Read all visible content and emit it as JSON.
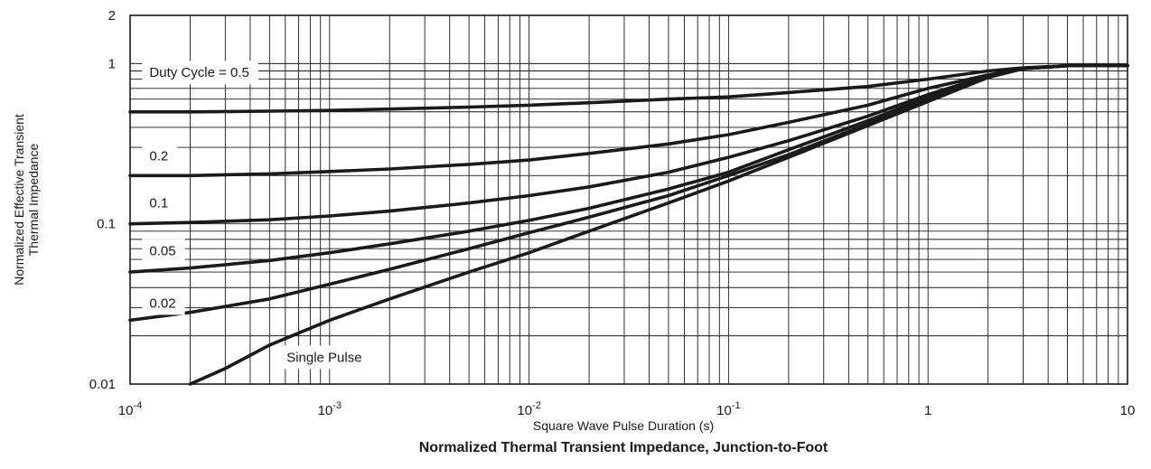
{
  "chart_data": {
    "type": "line",
    "title": "Normalized Thermal Transient Impedance, Junction-to-Foot",
    "xlabel": "Square Wave Pulse Duration (s)",
    "ylabel_lines": [
      "Normalized Effective Transient",
      "Thermal Impedance"
    ],
    "x_scale": "log",
    "y_scale": "log",
    "xlim": [
      0.0001,
      10
    ],
    "ylim": [
      0.01,
      2
    ],
    "grid": true,
    "x_ticks": [
      {
        "value": 0.0001,
        "base": "10",
        "exp": "-4"
      },
      {
        "value": 0.001,
        "base": "10",
        "exp": "-3"
      },
      {
        "value": 0.01,
        "base": "10",
        "exp": "-2"
      },
      {
        "value": 0.1,
        "base": "10",
        "exp": "-1"
      },
      {
        "value": 1,
        "base": "1",
        "exp": ""
      },
      {
        "value": 10,
        "base": "10",
        "exp": ""
      }
    ],
    "y_ticks": [
      {
        "value": 0.01,
        "label": "0.01"
      },
      {
        "value": 0.1,
        "label": "0.1"
      },
      {
        "value": 1,
        "label": "1"
      },
      {
        "value": 2,
        "label": "2"
      }
    ],
    "series": [
      {
        "name": "Duty Cycle = 0.5",
        "label_at": [
          0.000115,
          0.88
        ],
        "points": [
          [
            0.0001,
            0.5
          ],
          [
            0.0002,
            0.5
          ],
          [
            0.0005,
            0.505
          ],
          [
            0.001,
            0.51
          ],
          [
            0.002,
            0.52
          ],
          [
            0.005,
            0.535
          ],
          [
            0.01,
            0.55
          ],
          [
            0.02,
            0.57
          ],
          [
            0.05,
            0.6
          ],
          [
            0.1,
            0.62
          ],
          [
            0.2,
            0.66
          ],
          [
            0.5,
            0.72
          ],
          [
            1,
            0.8
          ],
          [
            2,
            0.9
          ],
          [
            3,
            0.94
          ],
          [
            5,
            0.97
          ],
          [
            10,
            0.97
          ]
        ]
      },
      {
        "name": "0.2",
        "label_at": [
          0.000115,
          0.265
        ],
        "points": [
          [
            0.0001,
            0.2
          ],
          [
            0.0002,
            0.2
          ],
          [
            0.0005,
            0.205
          ],
          [
            0.001,
            0.212
          ],
          [
            0.002,
            0.22
          ],
          [
            0.005,
            0.235
          ],
          [
            0.01,
            0.25
          ],
          [
            0.02,
            0.275
          ],
          [
            0.05,
            0.315
          ],
          [
            0.1,
            0.36
          ],
          [
            0.2,
            0.43
          ],
          [
            0.5,
            0.55
          ],
          [
            1,
            0.7
          ],
          [
            2,
            0.85
          ],
          [
            3,
            0.93
          ],
          [
            5,
            0.97
          ],
          [
            10,
            0.97
          ]
        ]
      },
      {
        "name": "0.1",
        "label_at": [
          0.000115,
          0.135
        ],
        "points": [
          [
            0.0001,
            0.1
          ],
          [
            0.0002,
            0.102
          ],
          [
            0.0005,
            0.106
          ],
          [
            0.001,
            0.112
          ],
          [
            0.002,
            0.12
          ],
          [
            0.005,
            0.135
          ],
          [
            0.01,
            0.15
          ],
          [
            0.02,
            0.17
          ],
          [
            0.05,
            0.21
          ],
          [
            0.1,
            0.26
          ],
          [
            0.2,
            0.33
          ],
          [
            0.5,
            0.47
          ],
          [
            1,
            0.64
          ],
          [
            2,
            0.84
          ],
          [
            3,
            0.93
          ],
          [
            5,
            0.97
          ],
          [
            10,
            0.97
          ]
        ]
      },
      {
        "name": "0.05",
        "label_at": [
          0.000115,
          0.068
        ],
        "points": [
          [
            0.0001,
            0.05
          ],
          [
            0.0002,
            0.053
          ],
          [
            0.0005,
            0.059
          ],
          [
            0.001,
            0.066
          ],
          [
            0.002,
            0.075
          ],
          [
            0.005,
            0.09
          ],
          [
            0.01,
            0.105
          ],
          [
            0.02,
            0.125
          ],
          [
            0.05,
            0.165
          ],
          [
            0.1,
            0.21
          ],
          [
            0.2,
            0.29
          ],
          [
            0.5,
            0.44
          ],
          [
            1,
            0.62
          ],
          [
            2,
            0.83
          ],
          [
            3,
            0.93
          ],
          [
            5,
            0.97
          ],
          [
            10,
            0.97
          ]
        ]
      },
      {
        "name": "0.02",
        "label_at": [
          0.000115,
          0.032
        ],
        "points": [
          [
            0.0001,
            0.025
          ],
          [
            0.0002,
            0.028
          ],
          [
            0.0005,
            0.034
          ],
          [
            0.001,
            0.042
          ],
          [
            0.002,
            0.052
          ],
          [
            0.005,
            0.07
          ],
          [
            0.01,
            0.088
          ],
          [
            0.02,
            0.11
          ],
          [
            0.05,
            0.15
          ],
          [
            0.1,
            0.2
          ],
          [
            0.2,
            0.27
          ],
          [
            0.5,
            0.42
          ],
          [
            1,
            0.6
          ],
          [
            2,
            0.83
          ],
          [
            3,
            0.93
          ],
          [
            5,
            0.97
          ],
          [
            10,
            0.97
          ]
        ]
      },
      {
        "name": "Single Pulse",
        "label_at": [
          0.00056,
          0.0147
        ],
        "points": [
          [
            0.0002,
            0.01
          ],
          [
            0.0003,
            0.0125
          ],
          [
            0.0005,
            0.0175
          ],
          [
            0.001,
            0.025
          ],
          [
            0.002,
            0.034
          ],
          [
            0.005,
            0.05
          ],
          [
            0.01,
            0.066
          ],
          [
            0.02,
            0.09
          ],
          [
            0.05,
            0.135
          ],
          [
            0.1,
            0.185
          ],
          [
            0.2,
            0.26
          ],
          [
            0.5,
            0.41
          ],
          [
            1,
            0.58
          ],
          [
            2,
            0.82
          ],
          [
            3,
            0.93
          ],
          [
            5,
            0.97
          ],
          [
            10,
            0.97
          ]
        ]
      }
    ]
  }
}
